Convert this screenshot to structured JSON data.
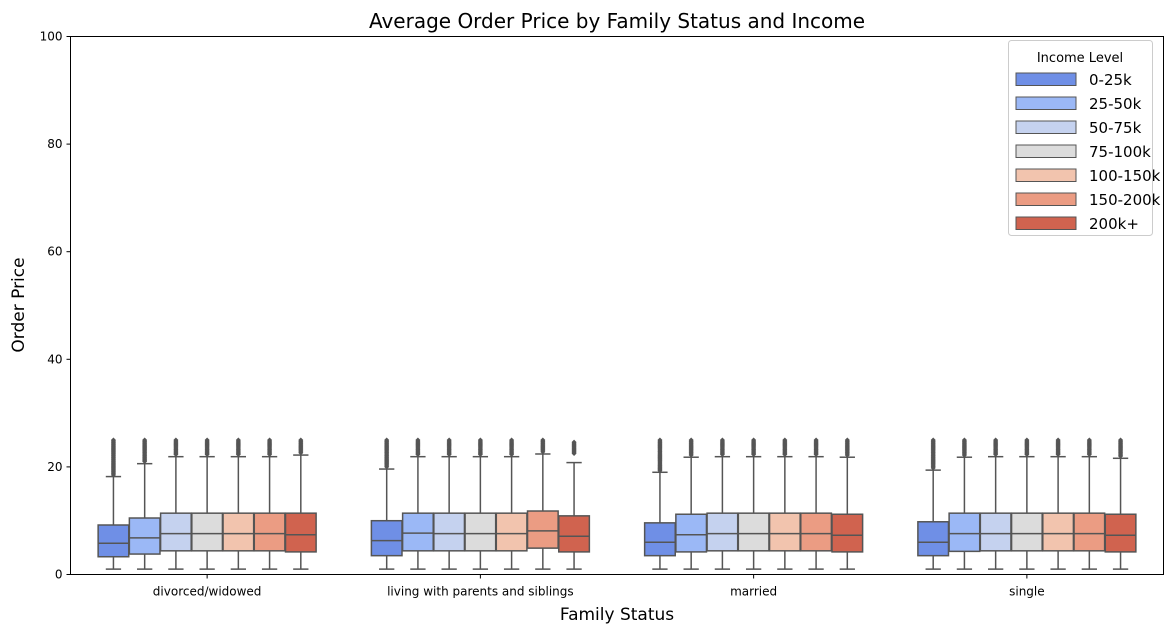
{
  "chart_data": {
    "type": "boxplot",
    "title": "Average Order Price by Family Status and Income",
    "xlabel": "Family Status",
    "ylabel": "Order Price",
    "ylim": [
      0,
      100
    ],
    "yticks": [
      0,
      20,
      40,
      60,
      80,
      100
    ],
    "grid": false,
    "legend": {
      "title": "Income Level",
      "placement": "top-right"
    },
    "categories": [
      "divorced/widowed",
      "living with parents and siblings",
      "married",
      "single"
    ],
    "series": [
      {
        "name": "0-25k",
        "color": "#6f8fe6",
        "boxes": [
          {
            "whislo": 1,
            "q1": 3.3,
            "med": 5.8,
            "q3": 9.2,
            "whishi": 18.2,
            "flier_min": 18.5,
            "flier_max": 25
          },
          {
            "whislo": 1,
            "q1": 3.5,
            "med": 6.3,
            "q3": 10,
            "whishi": 19.6,
            "flier_min": 20,
            "flier_max": 25
          },
          {
            "whislo": 1,
            "q1": 3.5,
            "med": 6,
            "q3": 9.6,
            "whishi": 19,
            "flier_min": 19.3,
            "flier_max": 25
          },
          {
            "whislo": 1,
            "q1": 3.5,
            "med": 6,
            "q3": 9.8,
            "whishi": 19.4,
            "flier_min": 19.8,
            "flier_max": 25
          }
        ]
      },
      {
        "name": "25-50k",
        "color": "#9bb8f6",
        "boxes": [
          {
            "whislo": 1,
            "q1": 3.8,
            "med": 6.8,
            "q3": 10.5,
            "whishi": 20.6,
            "flier_min": 21,
            "flier_max": 25
          },
          {
            "whislo": 1,
            "q1": 4.4,
            "med": 7.7,
            "q3": 11.4,
            "whishi": 21.9,
            "flier_min": 22.3,
            "flier_max": 25
          },
          {
            "whislo": 1,
            "q1": 4.2,
            "med": 7.4,
            "q3": 11.2,
            "whishi": 21.8,
            "flier_min": 22.2,
            "flier_max": 25
          },
          {
            "whislo": 1,
            "q1": 4.3,
            "med": 7.6,
            "q3": 11.4,
            "whishi": 21.8,
            "flier_min": 22.2,
            "flier_max": 25
          }
        ]
      },
      {
        "name": "50-75k",
        "color": "#c5d2ef",
        "boxes": [
          {
            "whislo": 1,
            "q1": 4.4,
            "med": 7.6,
            "q3": 11.4,
            "whishi": 21.9,
            "flier_min": 22.3,
            "flier_max": 25
          },
          {
            "whislo": 1,
            "q1": 4.4,
            "med": 7.6,
            "q3": 11.4,
            "whishi": 21.9,
            "flier_min": 22.3,
            "flier_max": 25
          },
          {
            "whislo": 1,
            "q1": 4.4,
            "med": 7.6,
            "q3": 11.4,
            "whishi": 21.9,
            "flier_min": 22.3,
            "flier_max": 25
          },
          {
            "whislo": 1,
            "q1": 4.4,
            "med": 7.6,
            "q3": 11.4,
            "whishi": 21.9,
            "flier_min": 22.3,
            "flier_max": 25
          }
        ]
      },
      {
        "name": "75-100k",
        "color": "#dcdcdc",
        "boxes": [
          {
            "whislo": 1,
            "q1": 4.4,
            "med": 7.6,
            "q3": 11.4,
            "whishi": 21.9,
            "flier_min": 22.3,
            "flier_max": 25
          },
          {
            "whislo": 1,
            "q1": 4.4,
            "med": 7.6,
            "q3": 11.4,
            "whishi": 21.9,
            "flier_min": 22.3,
            "flier_max": 25
          },
          {
            "whislo": 1,
            "q1": 4.4,
            "med": 7.6,
            "q3": 11.4,
            "whishi": 21.9,
            "flier_min": 22.3,
            "flier_max": 25
          },
          {
            "whislo": 1,
            "q1": 4.4,
            "med": 7.6,
            "q3": 11.4,
            "whishi": 21.9,
            "flier_min": 22.3,
            "flier_max": 25
          }
        ]
      },
      {
        "name": "100-150k",
        "color": "#f2c4ae",
        "boxes": [
          {
            "whislo": 1,
            "q1": 4.4,
            "med": 7.6,
            "q3": 11.4,
            "whishi": 21.9,
            "flier_min": 22.3,
            "flier_max": 25
          },
          {
            "whislo": 1,
            "q1": 4.4,
            "med": 7.6,
            "q3": 11.4,
            "whishi": 21.9,
            "flier_min": 22.3,
            "flier_max": 25
          },
          {
            "whislo": 1,
            "q1": 4.4,
            "med": 7.6,
            "q3": 11.4,
            "whishi": 21.9,
            "flier_min": 22.3,
            "flier_max": 25
          },
          {
            "whislo": 1,
            "q1": 4.4,
            "med": 7.6,
            "q3": 11.4,
            "whishi": 21.9,
            "flier_min": 22.3,
            "flier_max": 25
          }
        ]
      },
      {
        "name": "150-200k",
        "color": "#eb9c83",
        "boxes": [
          {
            "whislo": 1,
            "q1": 4.4,
            "med": 7.6,
            "q3": 11.4,
            "whishi": 21.9,
            "flier_min": 22.3,
            "flier_max": 25
          },
          {
            "whislo": 1,
            "q1": 4.9,
            "med": 8.1,
            "q3": 11.8,
            "whishi": 22.4,
            "flier_min": 22.8,
            "flier_max": 25
          },
          {
            "whislo": 1,
            "q1": 4.4,
            "med": 7.6,
            "q3": 11.4,
            "whishi": 21.9,
            "flier_min": 22.3,
            "flier_max": 25
          },
          {
            "whislo": 1,
            "q1": 4.4,
            "med": 7.6,
            "q3": 11.4,
            "whishi": 21.9,
            "flier_min": 22.3,
            "flier_max": 25
          }
        ]
      },
      {
        "name": "200k+",
        "color": "#d0634f",
        "boxes": [
          {
            "whislo": 1,
            "q1": 4.2,
            "med": 7.4,
            "q3": 11.4,
            "whishi": 22.2,
            "flier_min": 22.6,
            "flier_max": 25
          },
          {
            "whislo": 1,
            "q1": 4.2,
            "med": 7.1,
            "q3": 10.9,
            "whishi": 20.8,
            "flier_min": 22.5,
            "flier_max": 24.6
          },
          {
            "whislo": 1,
            "q1": 4.2,
            "med": 7.3,
            "q3": 11.2,
            "whishi": 21.8,
            "flier_min": 22.2,
            "flier_max": 25
          },
          {
            "whislo": 1,
            "q1": 4.2,
            "med": 7.3,
            "q3": 11.2,
            "whishi": 21.6,
            "flier_min": 22,
            "flier_max": 25
          }
        ]
      }
    ]
  }
}
